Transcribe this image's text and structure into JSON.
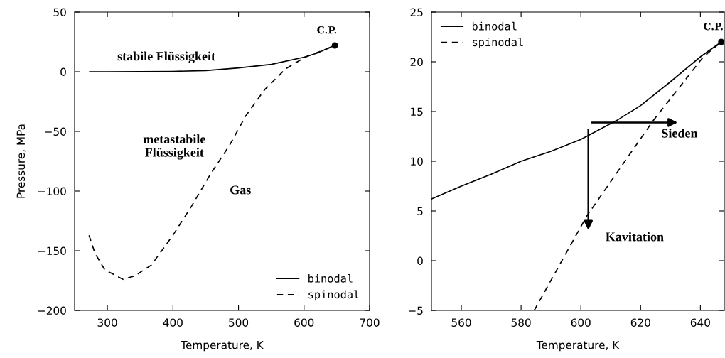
{
  "chart_data": [
    {
      "type": "line",
      "xlabel": "Temperature, K",
      "ylabel": "Pressure, MPa",
      "xlim": [
        250,
        700
      ],
      "ylim": [
        -200,
        50
      ],
      "xticks": [
        300,
        400,
        500,
        600,
        700
      ],
      "yticks": [
        -200,
        -150,
        -100,
        -50,
        0,
        50
      ],
      "grid": false,
      "legend": "bottom right",
      "marker": "none",
      "series": [
        {
          "name": "binodal",
          "color": "#000000",
          "line_style": "solid",
          "x": [
            273,
            300,
            350,
            400,
            450,
            500,
            550,
            600,
            620,
            640,
            647
          ],
          "values": [
            0,
            0,
            0.1,
            0.3,
            1.0,
            3.2,
            6.2,
            12.2,
            15.6,
            20.5,
            22
          ]
        },
        {
          "name": "spinodal",
          "color": "#000000",
          "line_style": "dashed",
          "x": [
            272,
            281,
            296,
            324,
            342,
            367,
            400,
            428,
            457,
            486,
            511,
            540,
            572,
            601,
            624,
            641
          ],
          "values": [
            -137,
            -152,
            -166,
            -174,
            -171,
            -162,
            -137,
            -113,
            -86,
            -62,
            -37,
            -15,
            2.5,
            12,
            17,
            20.5
          ]
        },
        {
          "type": "scatter",
          "color": "#000000",
          "marker": "circle",
          "x": [
            647
          ],
          "values": [
            22
          ]
        }
      ],
      "annotations": [
        {
          "text": "C.P.",
          "x": 647,
          "y": 22
        },
        "stabile Flüssigkeit",
        "metastabile\nFlüssigkeit",
        "Gas"
      ]
    },
    {
      "type": "line",
      "xlabel": "Temperature, K",
      "xlim": [
        550,
        648
      ],
      "ylim": [
        -5,
        25
      ],
      "xticks": [
        560,
        580,
        600,
        620,
        640
      ],
      "yticks": [
        -5,
        0,
        5,
        10,
        15,
        20,
        25
      ],
      "grid": false,
      "legend": "top left",
      "marker": "none",
      "series": [
        {
          "name": "binodal",
          "color": "#000000",
          "line_style": "solid",
          "x": [
            550,
            560,
            570,
            580,
            590,
            600,
            612,
            620,
            630,
            640,
            647
          ],
          "values": [
            6.2,
            7.5,
            8.7,
            10.0,
            11.0,
            12.2,
            14.1,
            15.6,
            18.0,
            20.5,
            22
          ]
        },
        {
          "name": "spinodal",
          "color": "#000000",
          "line_style": "dashed",
          "x": [
            584.4,
            602,
            624,
            641,
            647
          ],
          "values": [
            -5,
            4.5,
            14,
            20.5,
            22
          ]
        },
        {
          "type": "scatter",
          "color": "#000000",
          "marker": "circle",
          "x": [
            647
          ],
          "values": [
            22
          ]
        }
      ],
      "annotations": [
        {
          "text": "C.P.",
          "x": 647,
          "y": 22
        },
        "Sieden",
        "Kavitation"
      ]
    }
  ]
}
